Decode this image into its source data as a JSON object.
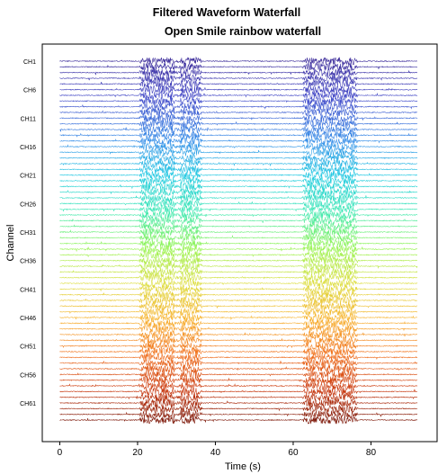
{
  "figure": {
    "suptitle": "Filtered Waveform Waterfall"
  },
  "chart_data": {
    "type": "line",
    "title": "Open Smile rainbow waterfall",
    "xlabel": "Time (s)",
    "ylabel": "Channel",
    "xlim": [
      -4.5,
      97
    ],
    "xticks": [
      0,
      20,
      40,
      60,
      80
    ],
    "x_range": [
      0,
      92
    ],
    "channel_count": 64,
    "channel_labels": [
      "CH1",
      "CH6",
      "CH11",
      "CH16",
      "CH21",
      "CH26",
      "CH31",
      "CH36",
      "CH41",
      "CH46",
      "CH51",
      "CH56",
      "CH61"
    ],
    "channel_label_every": 5,
    "bursts": [
      {
        "start": 20.5,
        "end": 36.5,
        "gap": [
          29.5,
          31
        ]
      },
      {
        "start": 62.5,
        "end": 76.5,
        "gap": null
      }
    ],
    "baseline_noise_amplitude": 0.06,
    "burst_amplitude": 0.5,
    "colormap": "rainbow (top: dark blue, bottom: dark red)",
    "colors": {
      "top": "#3b2b9a",
      "bottom": "#7f1a0b"
    },
    "grid": false
  }
}
